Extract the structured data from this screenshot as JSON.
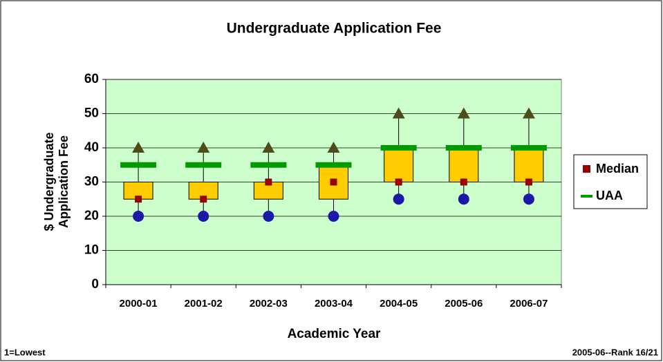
{
  "chart_data": {
    "type": "hilo",
    "title": "Undergraduate Application Fee",
    "ylabel": [
      "$ Undergraduate",
      "Application Fee"
    ],
    "xlabel": "Academic Year",
    "footnote_left": "1=Lowest",
    "footnote_right": "2005-06--Rank 16/21",
    "categories": [
      "2000-01",
      "2001-02",
      "2002-03",
      "2003-04",
      "2004-05",
      "2005-06",
      "2006-07"
    ],
    "series": [
      {
        "name": "Median",
        "color": "#990000",
        "values": [
          25,
          25,
          30,
          30,
          30,
          30,
          30
        ]
      },
      {
        "name": "UAA",
        "color": "#009900",
        "values": [
          35,
          35,
          35,
          35,
          40,
          40,
          40
        ]
      }
    ],
    "box": {
      "color": "#ffcc00",
      "low": [
        25,
        25,
        25,
        25,
        30,
        30,
        30
      ],
      "high": [
        30,
        30,
        30,
        35,
        40,
        40,
        40
      ]
    },
    "max": {
      "color": "#4d4d1a",
      "values": [
        40,
        40,
        40,
        40,
        50,
        50,
        50
      ]
    },
    "min": {
      "color": "#1a1aa6",
      "values": [
        20,
        20,
        20,
        20,
        25,
        25,
        25
      ]
    },
    "ylim": [
      0,
      60
    ],
    "yticks": [
      0,
      10,
      20,
      30,
      40,
      50,
      60
    ],
    "grid": true,
    "plot_background": "#ccffcc"
  }
}
